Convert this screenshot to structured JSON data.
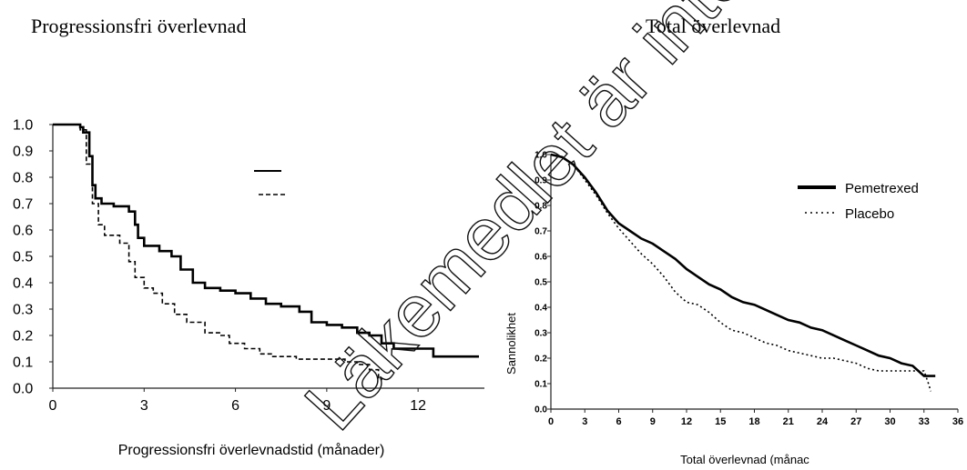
{
  "chart_data": [
    {
      "type": "line",
      "title": "Progressionsfri överlevnad",
      "xlabel": "Progressionsfri överlevnadstid (månader)",
      "ylabel": "",
      "xlim": [
        0,
        14
      ],
      "ylim": [
        0,
        1
      ],
      "x_ticks": [
        "0",
        "3",
        "6",
        "9",
        "12"
      ],
      "y_ticks": [
        "0.0",
        "0.1",
        "0.2",
        "0.3",
        "0.4",
        "0.5",
        "0.6",
        "0.7",
        "0.8",
        "0.9",
        "1.0"
      ],
      "legend_position": "top-center",
      "series": [
        {
          "name": "",
          "style": "solid-thick",
          "x": [
            0,
            0.9,
            1.0,
            1.2,
            1.3,
            1.4,
            1.6,
            2.0,
            2.5,
            2.7,
            2.8,
            3.0,
            3.5,
            3.9,
            4.2,
            4.6,
            5.0,
            5.5,
            6.0,
            6.5,
            7.0,
            7.5,
            7.8,
            8.1,
            8.5,
            9.0,
            9.5,
            10.0,
            10.4,
            10.8,
            11.2,
            11.8,
            12.5,
            13.5,
            14.0
          ],
          "y": [
            1.0,
            0.99,
            0.97,
            0.88,
            0.77,
            0.72,
            0.7,
            0.69,
            0.67,
            0.62,
            0.57,
            0.54,
            0.52,
            0.5,
            0.45,
            0.4,
            0.38,
            0.37,
            0.36,
            0.34,
            0.32,
            0.31,
            0.31,
            0.29,
            0.25,
            0.24,
            0.23,
            0.21,
            0.2,
            0.17,
            0.15,
            0.15,
            0.12,
            0.12,
            0.12
          ]
        },
        {
          "name": "",
          "style": "dashed",
          "x": [
            0,
            0.9,
            1.1,
            1.3,
            1.5,
            1.7,
            2.2,
            2.5,
            2.7,
            3.0,
            3.3,
            3.6,
            4.0,
            4.4,
            5.0,
            5.5,
            5.8,
            6.3,
            6.8,
            7.2,
            8.0,
            8.5,
            9.0,
            9.6,
            10.0,
            10.4,
            10.7,
            10.8
          ],
          "y": [
            1.0,
            0.98,
            0.85,
            0.7,
            0.62,
            0.58,
            0.55,
            0.48,
            0.42,
            0.38,
            0.36,
            0.32,
            0.28,
            0.25,
            0.21,
            0.2,
            0.17,
            0.15,
            0.13,
            0.12,
            0.11,
            0.11,
            0.11,
            0.1,
            0.09,
            0.07,
            0.04,
            0.03
          ]
        }
      ]
    },
    {
      "type": "line",
      "title": "Total överlevnad",
      "xlabel": "Total överlevnad (månac",
      "ylabel": "Sannolikhet",
      "xlim": [
        0,
        36
      ],
      "ylim": [
        0,
        1
      ],
      "x_ticks": [
        "0",
        "3",
        "6",
        "9",
        "12",
        "15",
        "18",
        "21",
        "24",
        "27",
        "30",
        "33",
        "36"
      ],
      "y_ticks": [
        "0.0",
        "0.1",
        "0.2",
        "0.3",
        "0.4",
        "0.5",
        "0.6",
        "0.7",
        "0.8",
        "0.9",
        "1.0"
      ],
      "legend_position": "top-right",
      "series": [
        {
          "name": "Pemetrexed",
          "style": "solid-thick",
          "x": [
            0,
            1,
            2,
            3,
            4,
            5,
            6,
            7,
            8,
            9,
            10,
            11,
            12,
            13,
            14,
            15,
            16,
            17,
            18,
            19,
            20,
            21,
            22,
            23,
            24,
            25,
            26,
            27,
            28,
            29,
            30,
            31,
            32,
            33,
            34
          ],
          "y": [
            1.0,
            0.99,
            0.96,
            0.91,
            0.85,
            0.78,
            0.73,
            0.7,
            0.67,
            0.65,
            0.62,
            0.59,
            0.55,
            0.52,
            0.49,
            0.47,
            0.44,
            0.42,
            0.41,
            0.39,
            0.37,
            0.35,
            0.34,
            0.32,
            0.31,
            0.29,
            0.27,
            0.25,
            0.23,
            0.21,
            0.2,
            0.18,
            0.17,
            0.13,
            0.13
          ]
        },
        {
          "name": "Placebo",
          "style": "dotted",
          "x": [
            0,
            1,
            2,
            3,
            4,
            5,
            6,
            7,
            8,
            9,
            10,
            11,
            12,
            13,
            14,
            15,
            16,
            17,
            18,
            19,
            20,
            21,
            22,
            23,
            24,
            25,
            26,
            27,
            28,
            29,
            30,
            31,
            32,
            33,
            33.4,
            33.6
          ],
          "y": [
            1.0,
            0.99,
            0.96,
            0.9,
            0.84,
            0.77,
            0.71,
            0.66,
            0.61,
            0.57,
            0.52,
            0.46,
            0.42,
            0.41,
            0.38,
            0.34,
            0.31,
            0.3,
            0.28,
            0.26,
            0.25,
            0.23,
            0.22,
            0.21,
            0.2,
            0.2,
            0.19,
            0.18,
            0.16,
            0.15,
            0.15,
            0.15,
            0.15,
            0.15,
            0.1,
            0.07
          ]
        }
      ]
    }
  ],
  "watermark": "Läkemedlet är inte längre godkänt"
}
